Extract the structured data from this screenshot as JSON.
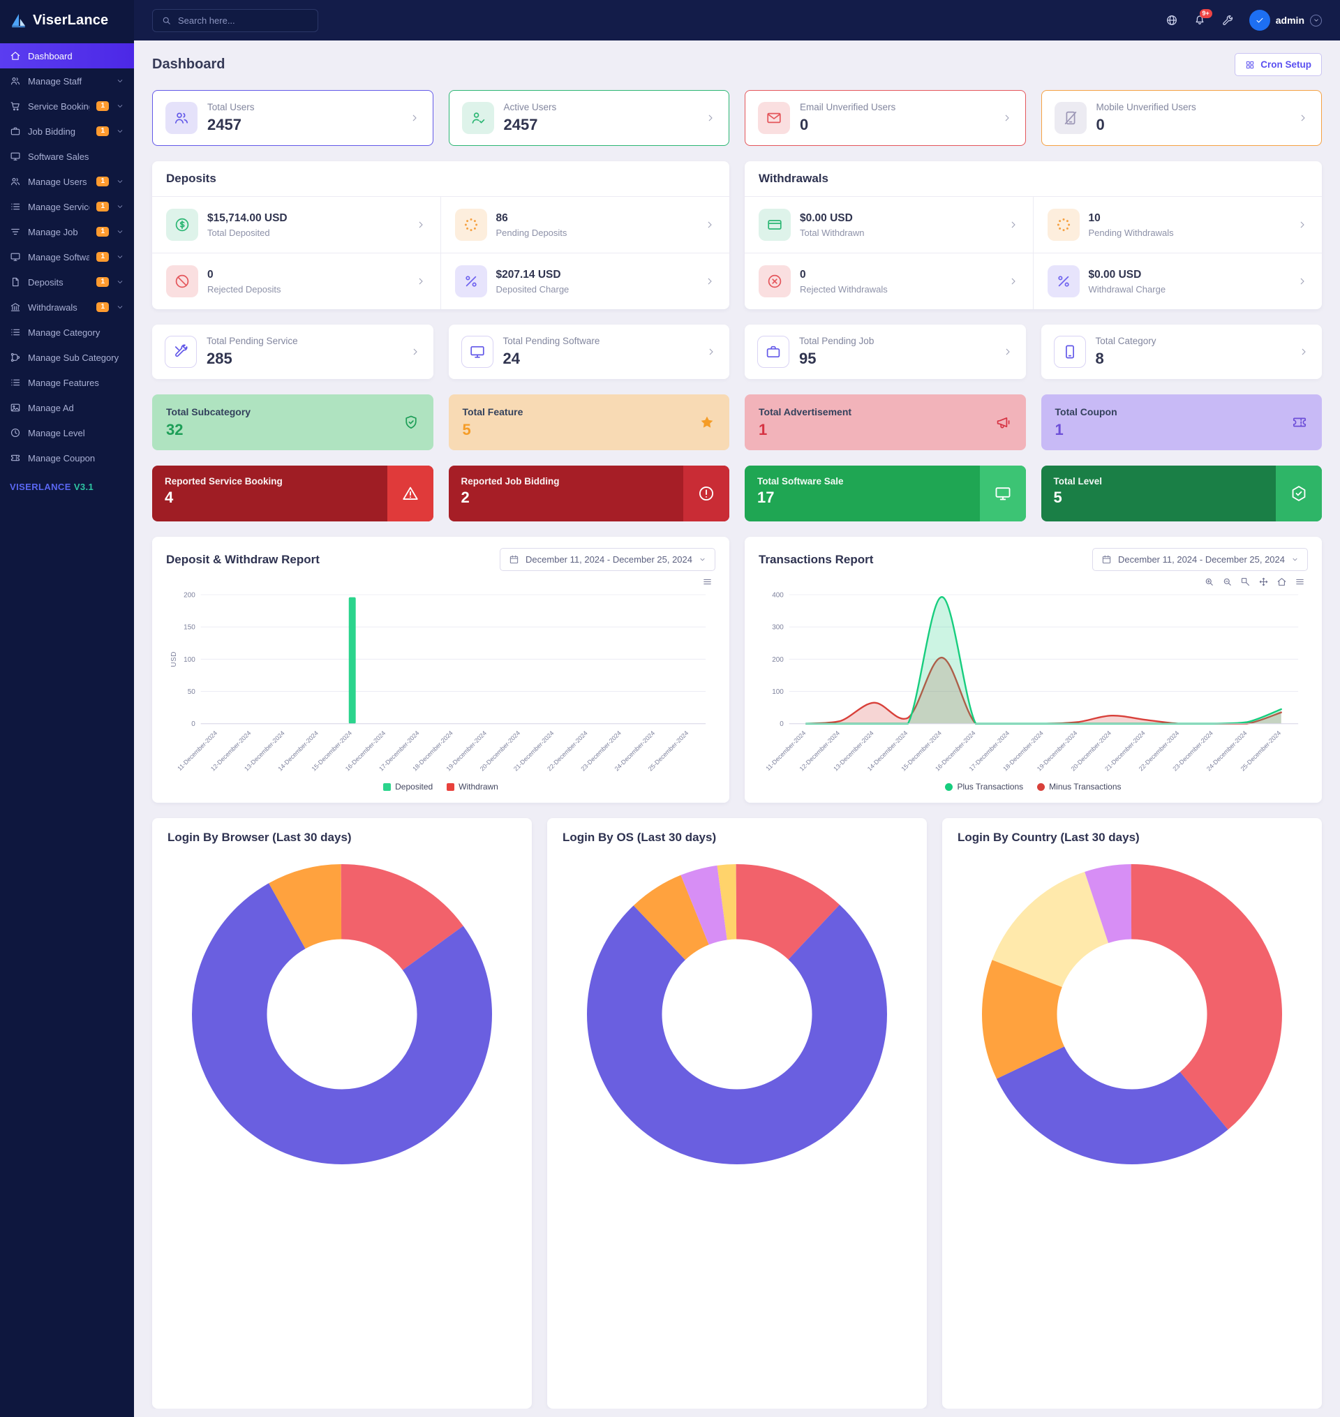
{
  "brand": {
    "viser": "Viser",
    "lance": "Lance"
  },
  "topbar": {
    "search_placeholder": "Search here...",
    "notification_badge": "9+",
    "admin_label": "admin"
  },
  "sidebar": {
    "items": [
      {
        "label": "Dashboard",
        "icon": "home",
        "active": true,
        "badge": "",
        "chevron": false
      },
      {
        "label": "Manage Staff",
        "icon": "users",
        "active": false,
        "badge": "",
        "chevron": true
      },
      {
        "label": "Service Booking",
        "icon": "cart",
        "active": false,
        "badge": "1",
        "chevron": true
      },
      {
        "label": "Job Bidding",
        "icon": "briefcase",
        "active": false,
        "badge": "1",
        "chevron": true
      },
      {
        "label": "Software Sales",
        "icon": "monitor",
        "active": false,
        "badge": "",
        "chevron": false
      },
      {
        "label": "Manage Users",
        "icon": "users",
        "active": false,
        "badge": "1",
        "chevron": true
      },
      {
        "label": "Manage Service",
        "icon": "list",
        "active": false,
        "badge": "1",
        "chevron": true
      },
      {
        "label": "Manage Job",
        "icon": "filter",
        "active": false,
        "badge": "1",
        "chevron": true
      },
      {
        "label": "Manage Software",
        "icon": "monitor",
        "active": false,
        "badge": "1",
        "chevron": true
      },
      {
        "label": "Deposits",
        "icon": "file",
        "active": false,
        "badge": "1",
        "chevron": true
      },
      {
        "label": "Withdrawals",
        "icon": "bank",
        "active": false,
        "badge": "1",
        "chevron": true
      },
      {
        "label": "Manage Category",
        "icon": "list",
        "active": false,
        "badge": "",
        "chevron": false
      },
      {
        "label": "Manage Sub Category",
        "icon": "branch",
        "active": false,
        "badge": "",
        "chevron": false
      },
      {
        "label": "Manage Features",
        "icon": "list",
        "active": false,
        "badge": "",
        "chevron": false
      },
      {
        "label": "Manage Ad",
        "icon": "image",
        "active": false,
        "badge": "",
        "chevron": false
      },
      {
        "label": "Manage Level",
        "icon": "clock",
        "active": false,
        "badge": "",
        "chevron": false
      },
      {
        "label": "Manage Coupon",
        "icon": "ticket",
        "active": false,
        "badge": "",
        "chevron": false
      }
    ],
    "footer_brand": "VISERLANCE",
    "footer_version": "V3.1"
  },
  "page": {
    "title": "Dashboard",
    "cron_setup": "Cron Setup"
  },
  "stat_cards": [
    {
      "label": "Total Users",
      "value": "2457",
      "icon": "users",
      "color": "#6258e8",
      "tint": "#e5e2fa"
    },
    {
      "label": "Active Users",
      "value": "2457",
      "icon": "user-check",
      "color": "#2bb673",
      "tint": "#def3ea"
    },
    {
      "label": "Email Unverified Users",
      "value": "0",
      "icon": "envelope",
      "color": "#e4555a",
      "tint": "#fadfe0"
    },
    {
      "label": "Mobile Unverified Users",
      "value": "0",
      "icon": "tablet-slash",
      "color": "#f5a142",
      "tint": "#ecebf2",
      "icon_color": "#9b96b5"
    }
  ],
  "deposits_panel": {
    "title": "Deposits",
    "cells": [
      {
        "value": "$15,714.00 USD",
        "label": "Total Deposited",
        "icon": "dollar",
        "color": "#2bb673",
        "tint": "#def3ea"
      },
      {
        "value": "86",
        "label": "Pending Deposits",
        "icon": "spinner",
        "color": "#f5a142",
        "tint": "#fdeedd"
      },
      {
        "value": "0",
        "label": "Rejected Deposits",
        "icon": "ban",
        "color": "#e4555a",
        "tint": "#fadfe0"
      },
      {
        "value": "$207.14 USD",
        "label": "Deposited Charge",
        "icon": "percent",
        "color": "#6f63ef",
        "tint": "#e7e4fc"
      }
    ]
  },
  "withdrawals_panel": {
    "title": "Withdrawals",
    "cells": [
      {
        "value": "$0.00 USD",
        "label": "Total Withdrawn",
        "icon": "wallet",
        "color": "#2bb673",
        "tint": "#def3ea"
      },
      {
        "value": "10",
        "label": "Pending Withdrawals",
        "icon": "spinner",
        "color": "#f5a142",
        "tint": "#fdeedd"
      },
      {
        "value": "0",
        "label": "Rejected Withdrawals",
        "icon": "circle-x",
        "color": "#e4555a",
        "tint": "#fadfe0"
      },
      {
        "value": "$0.00 USD",
        "label": "Withdrawal Charge",
        "icon": "percent",
        "color": "#6f63ef",
        "tint": "#e7e4fc"
      }
    ]
  },
  "pending_cards": [
    {
      "label": "Total Pending Service",
      "value": "285",
      "icon": "tools"
    },
    {
      "label": "Total Pending Software",
      "value": "24",
      "icon": "monitor"
    },
    {
      "label": "Total Pending Job",
      "value": "95",
      "icon": "briefcase"
    },
    {
      "label": "Total Category",
      "value": "8",
      "icon": "mobile"
    }
  ],
  "tinted_cards": [
    {
      "label": "Total Subcategory",
      "value": "32",
      "icon": "shield",
      "bg": "#afe3c0",
      "fg": "#1d9e57"
    },
    {
      "label": "Total Feature",
      "value": "5",
      "icon": "star",
      "bg": "#f8dab4",
      "fg": "#f59c27"
    },
    {
      "label": "Total Advertisement",
      "value": "1",
      "icon": "megaphone",
      "bg": "#f2b3ba",
      "fg": "#d63343"
    },
    {
      "label": "Total Coupon",
      "value": "1",
      "icon": "ticket",
      "bg": "#c8baf6",
      "fg": "#6d4fd8"
    }
  ],
  "solid_cards": [
    {
      "label": "Reported Service Booking",
      "value": "4",
      "icon": "warning",
      "bg": "#9f1d24",
      "accent": "#e03a3a"
    },
    {
      "label": "Reported Job Bidding",
      "value": "2",
      "icon": "alert",
      "bg": "#a61e26",
      "accent": "#c92c35"
    },
    {
      "label": "Total Software Sale",
      "value": "17",
      "icon": "monitor",
      "bg": "#1fa653",
      "accent": "#3cc474"
    },
    {
      "label": "Total Level",
      "value": "5",
      "icon": "hex-check",
      "bg": "#1a7f46",
      "accent": "#2eb567"
    }
  ],
  "chart_data": [
    {
      "id": "deposit-withdraw-report",
      "type": "bar",
      "title": "Deposit & Withdraw Report",
      "date_range": "December 11, 2024 - December 25, 2024",
      "ylabel": "USD",
      "ylim": [
        0,
        200
      ],
      "yticks": [
        0,
        50,
        100,
        150,
        200
      ],
      "grid": true,
      "legend_position": "bottom",
      "toolbar": [
        "menu"
      ],
      "categories": [
        "11-December-2024",
        "12-December-2024",
        "13-December-2024",
        "14-December-2024",
        "15-December-2024",
        "16-December-2024",
        "17-December-2024",
        "18-December-2024",
        "19-December-2024",
        "20-December-2024",
        "21-December-2024",
        "22-December-2024",
        "23-December-2024",
        "24-December-2024",
        "25-December-2024"
      ],
      "series": [
        {
          "name": "Deposited",
          "color": "#2bd48c",
          "values": [
            0,
            0,
            0,
            0,
            196,
            0,
            0,
            0,
            0,
            0,
            0,
            0,
            0,
            0,
            0
          ]
        },
        {
          "name": "Withdrawn",
          "color": "#e8413c",
          "values": [
            0,
            0,
            0,
            0,
            0,
            0,
            0,
            0,
            0,
            0,
            0,
            0,
            0,
            0,
            0
          ]
        }
      ]
    },
    {
      "id": "transactions-report",
      "type": "area",
      "title": "Transactions Report",
      "date_range": "December 11, 2024 - December 25, 2024",
      "ylabel": "",
      "ylim": [
        0,
        400
      ],
      "yticks": [
        0,
        100,
        200,
        300,
        400
      ],
      "grid": true,
      "legend_position": "bottom",
      "toolbar": [
        "zoom-in",
        "zoom-out",
        "selection-zoom",
        "pan",
        "home",
        "menu"
      ],
      "categories": [
        "11-December-2024",
        "12-December-2024",
        "13-December-2024",
        "14-December-2024",
        "15-December-2024",
        "16-December-2024",
        "17-December-2024",
        "18-December-2024",
        "19-December-2024",
        "20-December-2024",
        "21-December-2024",
        "22-December-2024",
        "23-December-2024",
        "24-December-2024",
        "25-December-2024"
      ],
      "series": [
        {
          "name": "Plus Transactions",
          "color": "#17cd7e",
          "values": [
            0,
            0,
            0,
            0,
            393,
            0,
            0,
            0,
            0,
            0,
            0,
            0,
            0,
            5,
            45
          ]
        },
        {
          "name": "Minus Transactions",
          "color": "#d8403a",
          "values": [
            0,
            8,
            65,
            18,
            205,
            0,
            0,
            0,
            5,
            25,
            12,
            0,
            0,
            0,
            35
          ]
        }
      ]
    },
    {
      "id": "login-by-browser",
      "type": "donut",
      "title": "Login By Browser (Last 30 days)",
      "segments": [
        {
          "color": "#f2626b",
          "value": 15
        },
        {
          "color": "#6a5fe0",
          "value": 77
        },
        {
          "color": "#ffa23e",
          "value": 8
        }
      ]
    },
    {
      "id": "login-by-os",
      "type": "donut",
      "title": "Login By OS (Last 30 days)",
      "segments": [
        {
          "color": "#f2626b",
          "value": 12
        },
        {
          "color": "#6a5fe0",
          "value": 76
        },
        {
          "color": "#ffa23e",
          "value": 6
        },
        {
          "color": "#d78ef5",
          "value": 4
        },
        {
          "color": "#ffd36b",
          "value": 2
        }
      ]
    },
    {
      "id": "login-by-country",
      "type": "donut",
      "title": "Login By Country (Last 30 days)",
      "segments": [
        {
          "color": "#f2626b",
          "value": 39
        },
        {
          "color": "#6a5fe0",
          "value": 29
        },
        {
          "color": "#ffa23e",
          "value": 13
        },
        {
          "color": "#ffe9ab",
          "value": 14
        },
        {
          "color": "#d78ef5",
          "value": 5
        }
      ]
    }
  ]
}
